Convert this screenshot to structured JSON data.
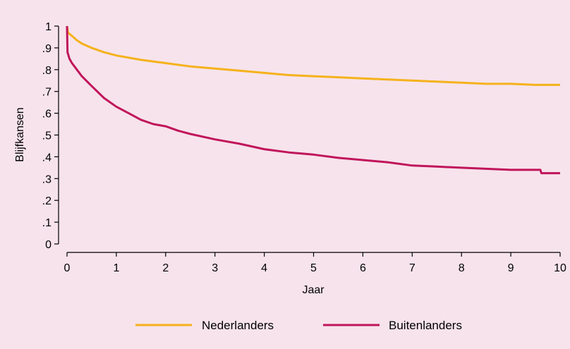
{
  "chart_data": {
    "type": "line",
    "title": "",
    "xlabel": "Jaar",
    "ylabel": "Blijfkansen",
    "xlim": [
      0,
      10
    ],
    "ylim": [
      0,
      1
    ],
    "x_ticks": [
      0,
      1,
      2,
      3,
      4,
      5,
      6,
      7,
      8,
      9,
      10
    ],
    "x_tick_labels": [
      "0",
      "1",
      "2",
      "3",
      "4",
      "5",
      "6",
      "7",
      "8",
      "9",
      "10"
    ],
    "y_ticks": [
      0,
      0.1,
      0.2,
      0.3,
      0.4,
      0.5,
      0.6,
      0.7,
      0.8,
      0.9,
      1
    ],
    "y_tick_labels": [
      "0",
      ".1",
      ".2",
      ".3",
      ".4",
      ".5",
      ".6",
      ".7",
      ".8",
      ".9",
      "1"
    ],
    "grid": false,
    "legend_position": "bottom",
    "background_color": "#f7e3ec",
    "series": [
      {
        "name": "Nederlanders",
        "color": "#f5b21b",
        "points": [
          [
            0,
            1.0
          ],
          [
            0.02,
            0.97
          ],
          [
            0.1,
            0.955
          ],
          [
            0.2,
            0.935
          ],
          [
            0.3,
            0.92
          ],
          [
            0.5,
            0.9
          ],
          [
            0.75,
            0.88
          ],
          [
            1,
            0.865
          ],
          [
            1.5,
            0.845
          ],
          [
            2,
            0.83
          ],
          [
            2.5,
            0.815
          ],
          [
            3,
            0.805
          ],
          [
            3.5,
            0.795
          ],
          [
            4,
            0.785
          ],
          [
            4.5,
            0.775
          ],
          [
            5,
            0.77
          ],
          [
            5.5,
            0.765
          ],
          [
            6,
            0.76
          ],
          [
            6.5,
            0.755
          ],
          [
            7,
            0.75
          ],
          [
            7.5,
            0.745
          ],
          [
            8,
            0.74
          ],
          [
            8.5,
            0.735
          ],
          [
            9,
            0.735
          ],
          [
            9.5,
            0.73
          ],
          [
            10,
            0.73
          ]
        ]
      },
      {
        "name": "Buitenlanders",
        "color": "#c0155a",
        "points": [
          [
            0,
            1.0
          ],
          [
            0.01,
            0.88
          ],
          [
            0.05,
            0.85
          ],
          [
            0.1,
            0.83
          ],
          [
            0.2,
            0.8
          ],
          [
            0.3,
            0.77
          ],
          [
            0.5,
            0.725
          ],
          [
            0.75,
            0.67
          ],
          [
            1,
            0.63
          ],
          [
            1.25,
            0.6
          ],
          [
            1.5,
            0.57
          ],
          [
            1.75,
            0.55
          ],
          [
            2,
            0.54
          ],
          [
            2.25,
            0.52
          ],
          [
            2.5,
            0.505
          ],
          [
            3,
            0.48
          ],
          [
            3.5,
            0.46
          ],
          [
            4,
            0.435
          ],
          [
            4.5,
            0.42
          ],
          [
            5,
            0.41
          ],
          [
            5.5,
            0.395
          ],
          [
            6,
            0.385
          ],
          [
            6.5,
            0.375
          ],
          [
            7,
            0.36
          ],
          [
            7.5,
            0.355
          ],
          [
            8,
            0.35
          ],
          [
            8.5,
            0.345
          ],
          [
            9,
            0.34
          ],
          [
            9.6,
            0.34
          ],
          [
            9.62,
            0.325
          ],
          [
            10,
            0.325
          ]
        ]
      }
    ]
  }
}
